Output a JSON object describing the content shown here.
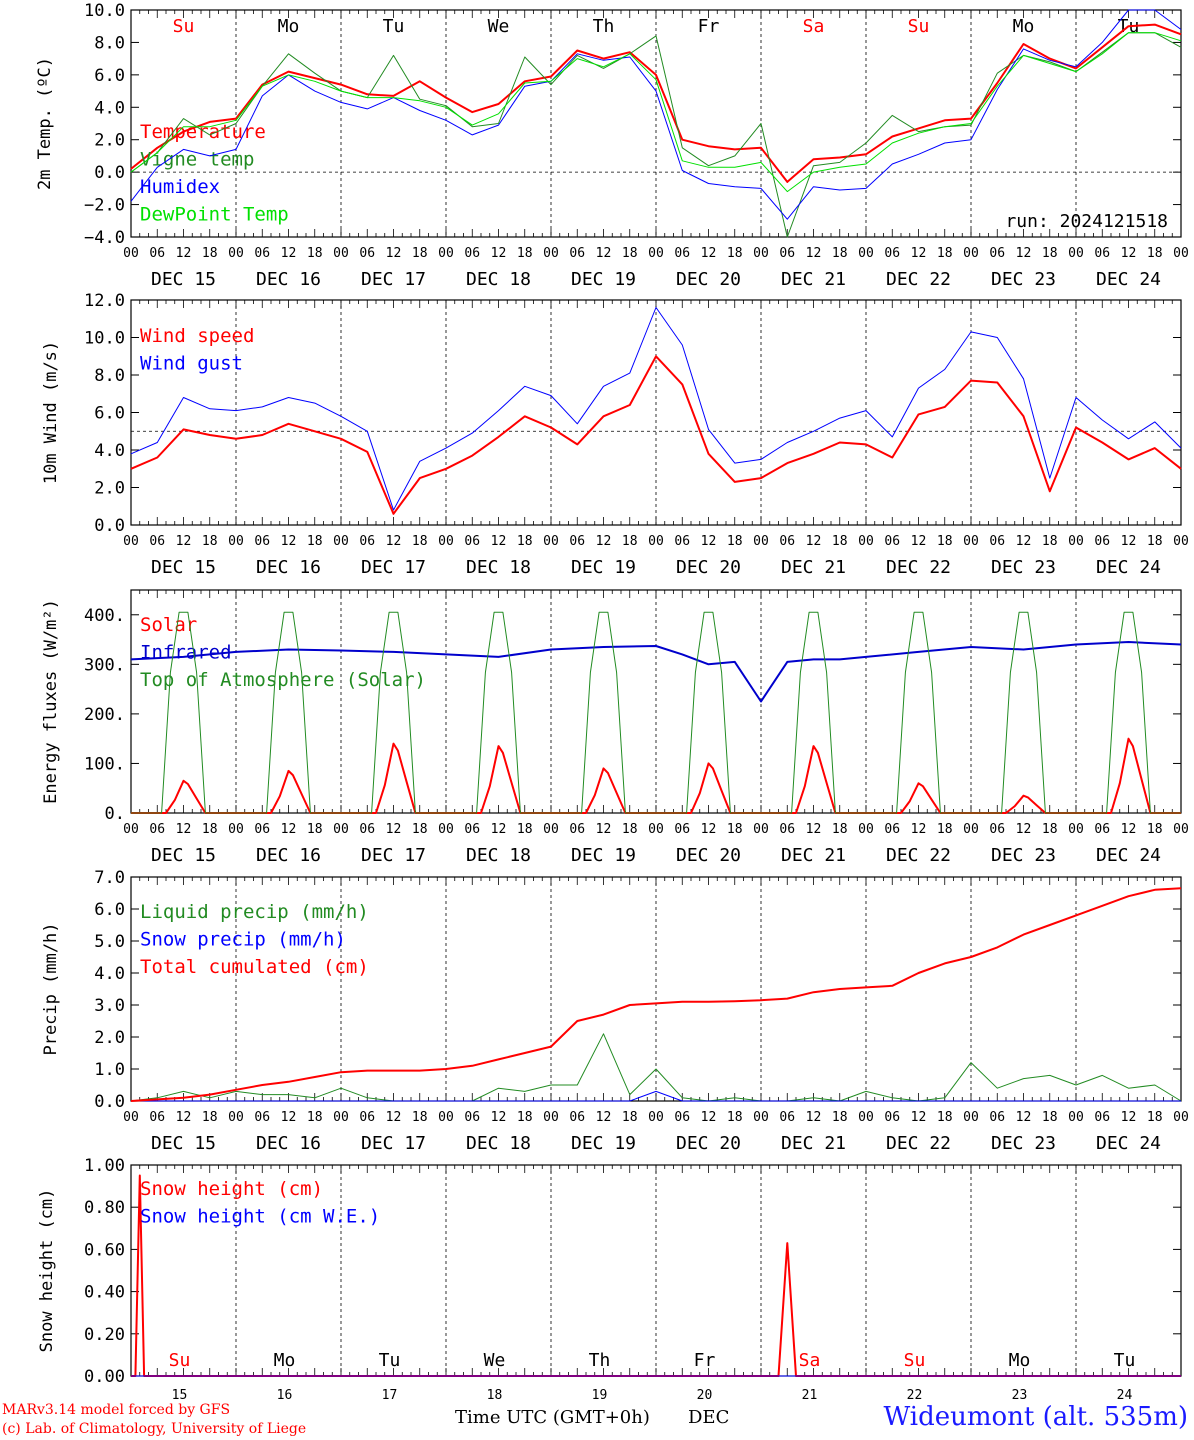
{
  "chart_data": [
    {
      "type": "line",
      "ylabel": "2m Temp. (ºC)",
      "ylim": [
        -4,
        10
      ],
      "yticks": [
        "−4.0",
        "−2.0",
        "0.0",
        "2.0",
        "4.0",
        "6.0",
        "8.0",
        "10.0"
      ],
      "ytick_values": [
        -4,
        -2,
        0,
        2,
        4,
        6,
        8,
        10
      ],
      "dashed_y": 0,
      "day_names": [
        "Su",
        "Mo",
        "Tu",
        "We",
        "Th",
        "Fr",
        "Sa",
        "Su",
        "Mo",
        "Tu"
      ],
      "day_name_colors": [
        "#ff0000",
        "#000000",
        "#000000",
        "#000000",
        "#000000",
        "#000000",
        "#ff0000",
        "#ff0000",
        "#000000",
        "#000000"
      ],
      "date_labels": [
        "DEC 15",
        "DEC 16",
        "DEC 17",
        "DEC 18",
        "DEC 19",
        "DEC 20",
        "DEC 21",
        "DEC 22",
        "DEC 23",
        "DEC 24"
      ],
      "hour_labels": [
        "00",
        "06",
        "12",
        "18"
      ],
      "annotation": "run: 2024121518",
      "x_hours": [
        0,
        6,
        12,
        18,
        24,
        30,
        36,
        42,
        48,
        54,
        60,
        66,
        72,
        78,
        84,
        90,
        96,
        102,
        108,
        114,
        120,
        126,
        132,
        138,
        144,
        150,
        156,
        162,
        168,
        174,
        180,
        186,
        192,
        198,
        204,
        210,
        216,
        222,
        228,
        234,
        240
      ],
      "series": [
        {
          "name": "Temperature",
          "color": "#ff0000",
          "width": 2,
          "values": [
            0.2,
            1.5,
            2.5,
            3.1,
            3.3,
            5.4,
            6.2,
            5.8,
            5.4,
            4.8,
            4.7,
            5.6,
            4.6,
            3.7,
            4.2,
            5.6,
            5.9,
            7.5,
            7.0,
            7.4,
            6.0,
            2.0,
            1.6,
            1.4,
            1.5,
            -0.6,
            0.8,
            0.9,
            1.1,
            2.2,
            2.7,
            3.2,
            3.3,
            5.5,
            7.9,
            7.0,
            6.4,
            7.7,
            9.0,
            9.1,
            8.5
          ]
        },
        {
          "name": "Vigne temp",
          "color": "#228b22",
          "width": 1,
          "values": [
            0.0,
            1.2,
            3.3,
            2.3,
            3.0,
            5.3,
            7.3,
            6.1,
            5.0,
            4.6,
            7.2,
            4.5,
            4.1,
            2.8,
            3.0,
            7.1,
            5.4,
            7.2,
            6.4,
            7.3,
            8.4,
            1.5,
            0.4,
            1.0,
            3.0,
            -4.0,
            0.4,
            0.6,
            1.8,
            3.5,
            2.5,
            2.8,
            2.9,
            6.1,
            7.2,
            6.8,
            6.2,
            7.4,
            8.6,
            8.6,
            7.7
          ]
        },
        {
          "name": "Humidex",
          "color": "#0000ff",
          "width": 1,
          "values": [
            -1.8,
            0.3,
            1.4,
            1.0,
            1.4,
            4.7,
            6.0,
            5.0,
            4.3,
            3.9,
            4.6,
            3.8,
            3.2,
            2.3,
            2.9,
            5.3,
            5.6,
            7.3,
            6.9,
            7.1,
            5.0,
            0.1,
            -0.7,
            -0.9,
            -1.0,
            -2.9,
            -0.9,
            -1.1,
            -1.0,
            0.5,
            1.1,
            1.8,
            2.0,
            5.1,
            7.6,
            6.9,
            6.5,
            8.0,
            10.0,
            10.1,
            8.8
          ]
        },
        {
          "name": "DewPoint Temp",
          "color": "#00e000",
          "width": 1,
          "values": [
            0.0,
            1.2,
            2.8,
            2.8,
            3.2,
            5.3,
            6.0,
            5.6,
            5.0,
            4.6,
            4.6,
            4.4,
            4.0,
            2.9,
            3.6,
            5.5,
            5.6,
            7.0,
            6.5,
            7.3,
            5.7,
            0.7,
            0.3,
            0.3,
            0.6,
            -1.2,
            0.0,
            0.3,
            0.5,
            1.8,
            2.4,
            2.8,
            3.0,
            5.3,
            7.2,
            6.7,
            6.2,
            7.3,
            8.6,
            8.6,
            8.1
          ]
        }
      ]
    },
    {
      "type": "line",
      "ylabel": "10m Wind (m/s)",
      "ylim": [
        0,
        12
      ],
      "yticks": [
        "0.0",
        "2.0",
        "4.0",
        "6.0",
        "8.0",
        "10.0",
        "12.0"
      ],
      "ytick_values": [
        0,
        2,
        4,
        6,
        8,
        10,
        12
      ],
      "dashed_y": 5,
      "date_labels": [
        "DEC 15",
        "DEC 16",
        "DEC 17",
        "DEC 18",
        "DEC 19",
        "DEC 20",
        "DEC 21",
        "DEC 22",
        "DEC 23",
        "DEC 24"
      ],
      "hour_labels": [
        "00",
        "06",
        "12",
        "18"
      ],
      "x_hours": [
        0,
        6,
        12,
        18,
        24,
        30,
        36,
        42,
        48,
        54,
        60,
        66,
        72,
        78,
        84,
        90,
        96,
        102,
        108,
        114,
        120,
        126,
        132,
        138,
        144,
        150,
        156,
        162,
        168,
        174,
        180,
        186,
        192,
        198,
        204,
        210,
        216,
        222,
        228,
        234,
        240
      ],
      "series": [
        {
          "name": "Wind speed",
          "color": "#ff0000",
          "width": 2,
          "values": [
            3.0,
            3.6,
            5.1,
            4.8,
            4.6,
            4.8,
            5.4,
            5.0,
            4.6,
            3.9,
            0.6,
            2.5,
            3.0,
            3.7,
            4.7,
            5.8,
            5.2,
            4.3,
            5.8,
            6.4,
            9.0,
            7.5,
            3.8,
            2.3,
            2.5,
            3.3,
            3.8,
            4.4,
            4.3,
            3.6,
            5.9,
            6.3,
            7.7,
            7.6,
            5.8,
            1.8,
            5.2,
            4.4,
            3.5,
            4.1,
            3.0
          ]
        },
        {
          "name": "Wind gust",
          "color": "#0000ff",
          "width": 1,
          "values": [
            3.8,
            4.4,
            6.8,
            6.2,
            6.1,
            6.3,
            6.8,
            6.5,
            5.8,
            5.0,
            0.8,
            3.4,
            4.1,
            4.9,
            6.1,
            7.4,
            6.9,
            5.4,
            7.4,
            8.1,
            11.6,
            9.6,
            5.1,
            3.3,
            3.5,
            4.4,
            5.0,
            5.7,
            6.1,
            4.7,
            7.3,
            8.3,
            10.3,
            10.0,
            7.8,
            2.5,
            6.8,
            5.6,
            4.6,
            5.5,
            4.1
          ]
        }
      ]
    },
    {
      "type": "line",
      "ylabel": "Energy fluxes (W/m²)",
      "ylim": [
        0,
        450
      ],
      "yticks": [
        "0.",
        "100.",
        "200.",
        "300.",
        "400."
      ],
      "ytick_values": [
        0,
        100,
        200,
        300,
        400
      ],
      "date_labels": [
        "DEC 15",
        "DEC 16",
        "DEC 17",
        "DEC 18",
        "DEC 19",
        "DEC 20",
        "DEC 21",
        "DEC 22",
        "DEC 23",
        "DEC 24"
      ],
      "hour_labels": [
        "00",
        "06",
        "12",
        "18"
      ],
      "diurnal_hours": [
        0,
        8,
        9,
        10,
        11,
        12,
        13,
        14,
        15,
        16,
        17,
        24
      ],
      "series": [
        {
          "name": "Solar",
          "color": "#ff0000",
          "width": 2,
          "daily_peaks": [
            65,
            85,
            140,
            135,
            90,
            100,
            135,
            60,
            35,
            150
          ]
        },
        {
          "name": "Infrared",
          "color": "#0000cc",
          "width": 2,
          "x_hours": [
            0,
            12,
            24,
            36,
            48,
            60,
            72,
            84,
            96,
            108,
            120,
            126,
            132,
            138,
            144,
            150,
            156,
            162,
            168,
            180,
            192,
            204,
            216,
            228,
            240
          ],
          "values": [
            310,
            315,
            325,
            330,
            328,
            325,
            320,
            315,
            330,
            335,
            337,
            320,
            300,
            305,
            225,
            305,
            310,
            310,
            315,
            325,
            335,
            330,
            340,
            345,
            340
          ]
        },
        {
          "name": "Top of Atmosphere (Solar)",
          "color": "#228b22",
          "width": 1,
          "daily_peaks": [
            405,
            405,
            405,
            405,
            405,
            405,
            405,
            405,
            405,
            405
          ]
        }
      ]
    },
    {
      "type": "line",
      "ylabel": "Precip (mm/h)",
      "ylim": [
        0,
        7
      ],
      "yticks": [
        "0.0",
        "1.0",
        "2.0",
        "3.0",
        "4.0",
        "5.0",
        "6.0",
        "7.0"
      ],
      "ytick_values": [
        0,
        1,
        2,
        3,
        4,
        5,
        6,
        7
      ],
      "date_labels": [
        "DEC 15",
        "DEC 16",
        "DEC 17",
        "DEC 18",
        "DEC 19",
        "DEC 20",
        "DEC 21",
        "DEC 22",
        "DEC 23",
        "DEC 24"
      ],
      "hour_labels": [
        "00",
        "06",
        "12",
        "18"
      ],
      "x_hours": [
        0,
        6,
        12,
        18,
        24,
        30,
        36,
        42,
        48,
        54,
        60,
        66,
        72,
        78,
        84,
        90,
        96,
        102,
        108,
        114,
        120,
        126,
        132,
        138,
        144,
        150,
        156,
        162,
        168,
        174,
        180,
        186,
        192,
        198,
        204,
        210,
        216,
        222,
        228,
        234,
        240
      ],
      "series": [
        {
          "name": "Liquid precip (mm/h)",
          "color": "#228b22",
          "width": 1,
          "values": [
            0.0,
            0.1,
            0.3,
            0.1,
            0.3,
            0.2,
            0.2,
            0.1,
            0.4,
            0.1,
            0.0,
            0.0,
            0.0,
            0.0,
            0.4,
            0.3,
            0.5,
            0.5,
            2.1,
            0.2,
            1.0,
            0.1,
            0.0,
            0.1,
            0.0,
            0.0,
            0.1,
            0.0,
            0.3,
            0.1,
            0.0,
            0.1,
            1.2,
            0.4,
            0.7,
            0.8,
            0.5,
            0.8,
            0.4,
            0.5,
            0.0
          ]
        },
        {
          "name": "Snow precip (mm/h)",
          "color": "#0000ff",
          "width": 1,
          "values": [
            0.0,
            0.0,
            0.0,
            0.0,
            0.0,
            0.0,
            0.0,
            0.0,
            0.0,
            0.0,
            0.0,
            0.0,
            0.0,
            0.0,
            0.0,
            0.0,
            0.0,
            0.0,
            0.0,
            0.0,
            0.3,
            0.0,
            0.0,
            0.0,
            0.0,
            0.0,
            0.0,
            0.0,
            0.0,
            0.0,
            0.0,
            0.0,
            0.0,
            0.0,
            0.0,
            0.0,
            0.0,
            0.0,
            0.0,
            0.0,
            0.0
          ]
        },
        {
          "name": "Total cumulated (cm)",
          "color": "#ff0000",
          "width": 2,
          "values": [
            0.0,
            0.05,
            0.1,
            0.2,
            0.35,
            0.5,
            0.6,
            0.75,
            0.9,
            0.95,
            0.95,
            0.95,
            1.0,
            1.1,
            1.3,
            1.5,
            1.7,
            2.5,
            2.7,
            3.0,
            3.05,
            3.1,
            3.1,
            3.12,
            3.15,
            3.2,
            3.4,
            3.5,
            3.55,
            3.6,
            4.0,
            4.3,
            4.5,
            4.8,
            5.2,
            5.5,
            5.8,
            6.1,
            6.4,
            6.6,
            6.65
          ]
        }
      ]
    },
    {
      "type": "line",
      "ylabel": "Snow height (cm)",
      "ylim": [
        0,
        1
      ],
      "yticks": [
        "0.00",
        "0.20",
        "0.40",
        "0.60",
        "0.80",
        "1.00"
      ],
      "ytick_values": [
        0,
        0.2,
        0.4,
        0.6,
        0.8,
        1.0
      ],
      "day_names": [
        "Su",
        "Mo",
        "Tu",
        "We",
        "Th",
        "Fr",
        "Sa",
        "Su",
        "Mo",
        "Tu"
      ],
      "day_name_colors": [
        "#ff0000",
        "#000000",
        "#000000",
        "#000000",
        "#000000",
        "#000000",
        "#ff0000",
        "#ff0000",
        "#000000",
        "#000000"
      ],
      "day_numbers": [
        "15",
        "16",
        "17",
        "18",
        "19",
        "20",
        "21",
        "22",
        "23",
        "24"
      ],
      "xlabel": "Time UTC (GMT+0h)",
      "xlabel_suffix": "DEC",
      "x_hours": [
        0,
        1,
        2,
        3,
        4,
        6,
        144,
        148,
        150,
        152,
        240
      ],
      "series": [
        {
          "name": "Snow height (cm)",
          "color": "#ff0000",
          "width": 2,
          "values": [
            0,
            0,
            0.95,
            0,
            0,
            0,
            0,
            0,
            0.63,
            0,
            0
          ]
        },
        {
          "name": "Snow height (cm W.E.)",
          "color": "#0000ff",
          "width": 1,
          "values": [
            0,
            0,
            0,
            0,
            0,
            0,
            0,
            0,
            0,
            0,
            0
          ]
        }
      ]
    }
  ],
  "footer": {
    "model_line": "MARv3.14 model forced by GFS",
    "copyright_line": "(c) Lab. of Climatology, University of Liege",
    "xlabel": "Time UTC (GMT+0h) DEC",
    "station": "Wideumont (alt. 535m)"
  }
}
